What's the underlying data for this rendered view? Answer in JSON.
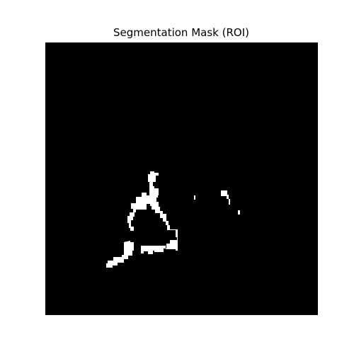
{
  "figure": {
    "title": "Segmentation Mask (ROI)"
  },
  "mask": {
    "background_color": "#000000",
    "foreground_color": "#ffffff"
  }
}
